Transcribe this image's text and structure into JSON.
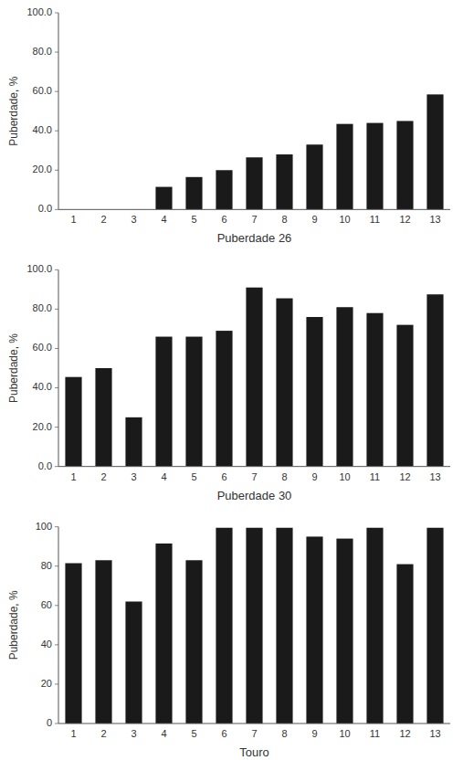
{
  "chart_data": [
    {
      "type": "bar",
      "categories": [
        1,
        2,
        3,
        4,
        5,
        6,
        7,
        8,
        9,
        10,
        11,
        12,
        13
      ],
      "values": [
        0,
        0,
        0,
        11.5,
        16.5,
        20.0,
        26.5,
        28.0,
        33.0,
        43.5,
        44.0,
        45.0,
        58.5
      ],
      "color": "#1a1a1a",
      "xlabel": "Puberdade 26",
      "ylabel": "Puberdade, %",
      "ylim": [
        0,
        100
      ],
      "yticks": [
        {
          "value": 0,
          "label": "0.0"
        },
        {
          "value": 20,
          "label": "20.0"
        },
        {
          "value": 40,
          "label": "40.0"
        },
        {
          "value": 60,
          "label": "60.0"
        },
        {
          "value": 80,
          "label": "80.0"
        },
        {
          "value": 100,
          "label": "100.0"
        }
      ]
    },
    {
      "type": "bar",
      "categories": [
        1,
        2,
        3,
        4,
        5,
        6,
        7,
        8,
        9,
        10,
        11,
        12,
        13
      ],
      "values": [
        45.5,
        50.0,
        25.0,
        66.0,
        66.0,
        69.0,
        91.0,
        85.5,
        76.0,
        81.0,
        78.0,
        72.0,
        87.5
      ],
      "color": "#1a1a1a",
      "xlabel": "Puberdade 30",
      "ylabel": "Puberdade, %",
      "ylim": [
        0,
        100
      ],
      "yticks": [
        {
          "value": 0,
          "label": "0.0"
        },
        {
          "value": 20,
          "label": "20.0"
        },
        {
          "value": 40,
          "label": "40.0"
        },
        {
          "value": 60,
          "label": "60.0"
        },
        {
          "value": 80,
          "label": "80.0"
        },
        {
          "value": 100,
          "label": "100.0"
        }
      ]
    },
    {
      "type": "bar",
      "categories": [
        1,
        2,
        3,
        4,
        5,
        6,
        7,
        8,
        9,
        10,
        11,
        12,
        13
      ],
      "values": [
        81.5,
        83.0,
        62.0,
        91.5,
        83.0,
        99.5,
        99.5,
        99.5,
        95.0,
        94.0,
        99.5,
        81.0,
        99.5
      ],
      "color": "#1a1a1a",
      "xlabel": "Touro",
      "ylabel": "Puberdade, %",
      "ylim": [
        0,
        100
      ],
      "yticks": [
        0,
        20,
        40,
        60,
        80,
        100
      ]
    }
  ]
}
